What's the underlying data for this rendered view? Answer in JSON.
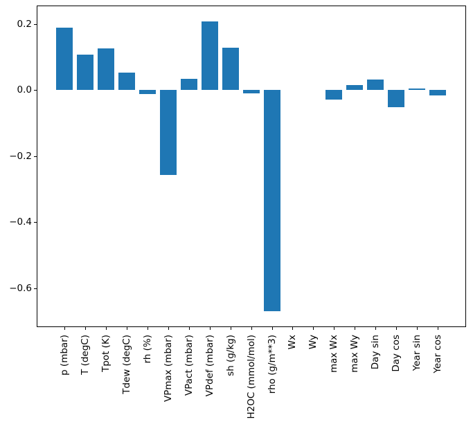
{
  "figure": {
    "background": "#ffffff"
  },
  "chart_data": {
    "type": "bar",
    "title": "",
    "xlabel": "",
    "ylabel": "",
    "categories": [
      "p (mbar)",
      "T (degC)",
      "Tpot (K)",
      "Tdew (degC)",
      "rh (%)",
      "VPmax (mbar)",
      "VPact (mbar)",
      "VPdef (mbar)",
      "sh (g/kg)",
      "H2OC (mmol/mol)",
      "rho (g/m**3)",
      "Wx",
      "Wy",
      "max Wx",
      "max Wy",
      "Day sin",
      "Day cos",
      "Year sin",
      "Year cos"
    ],
    "values": [
      0.19,
      0.108,
      0.127,
      0.054,
      -0.012,
      -0.256,
      0.035,
      0.208,
      0.129,
      -0.01,
      -0.669,
      0.0,
      0.0,
      -0.028,
      0.016,
      0.033,
      -0.052,
      0.004,
      -0.017
    ],
    "bar_color": "#1f77b4",
    "axis_color": "#000000",
    "ylim": [
      -0.715,
      0.254
    ],
    "yticks": [
      0.2,
      0.0,
      -0.2,
      -0.4,
      -0.6
    ],
    "ytick_labels": [
      "0.2",
      "0.0",
      "−0.2",
      "−0.4",
      "−0.6"
    ],
    "xtick_rotation_deg": 90,
    "grid": false,
    "legend": "none"
  }
}
